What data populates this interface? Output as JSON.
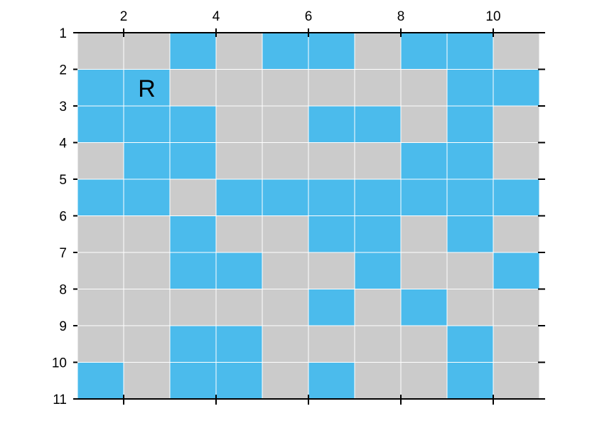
{
  "chart_data": {
    "type": "heatmap",
    "title": "",
    "xlabel": "",
    "ylabel": "",
    "x_ticks": [
      2,
      4,
      6,
      8,
      10
    ],
    "y_ticks": [
      1,
      2,
      3,
      4,
      5,
      6,
      7,
      8,
      9,
      10,
      11
    ],
    "xlim": [
      1,
      11
    ],
    "ylim": [
      1,
      11
    ],
    "x_axis_position": "top",
    "grid": true,
    "colors": {
      "0": "#cbcbcb",
      "1": "#4bbbec"
    },
    "cells": [
      [
        0,
        0,
        1,
        0,
        1,
        1,
        0,
        1,
        1,
        0
      ],
      [
        1,
        1,
        0,
        0,
        0,
        0,
        0,
        0,
        1,
        1
      ],
      [
        1,
        1,
        1,
        0,
        0,
        1,
        1,
        0,
        1,
        0
      ],
      [
        0,
        1,
        1,
        0,
        0,
        0,
        0,
        1,
        1,
        0
      ],
      [
        1,
        1,
        0,
        1,
        1,
        1,
        1,
        1,
        1,
        1
      ],
      [
        0,
        0,
        1,
        0,
        0,
        1,
        1,
        0,
        1,
        0
      ],
      [
        0,
        0,
        1,
        1,
        0,
        0,
        1,
        0,
        0,
        1
      ],
      [
        0,
        0,
        0,
        0,
        0,
        1,
        0,
        1,
        0,
        0
      ],
      [
        0,
        0,
        1,
        1,
        0,
        0,
        0,
        0,
        1,
        0
      ],
      [
        1,
        0,
        1,
        1,
        0,
        1,
        0,
        0,
        1,
        0
      ]
    ],
    "annotations": [
      {
        "text": "R",
        "x": 2.5,
        "y": 2.5
      }
    ]
  }
}
